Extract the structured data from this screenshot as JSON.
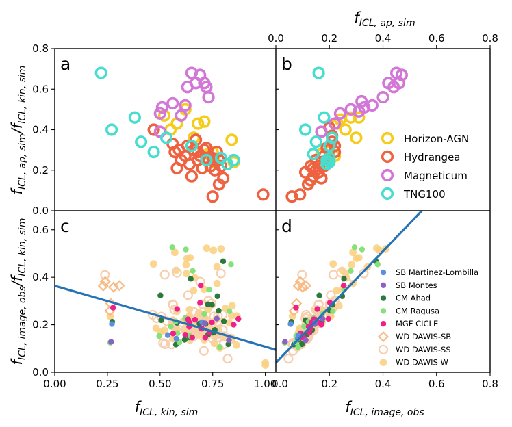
{
  "chart_data": {
    "type": "scatter",
    "title": "",
    "axis_labels": {
      "bottom_left": "f_ICL,kin,sim",
      "bottom_right": "f_ICL,image,obs",
      "top_right": "f_ICL,ap,sim",
      "left_top": "f_ICL,ap,sim / f_ICL,kin,sim",
      "left_bottom": "f_ICL,image,obs / f_ICL,kin,sim"
    },
    "axis_texts": {
      "left_top": {
        "base": "f",
        "sub": "ICL, ap, sim",
        "mid": "/f",
        "sub2": "ICL, kin, sim"
      },
      "left_bottom": {
        "base": "f",
        "sub": "ICL, image, obs",
        "mid": "/f",
        "sub2": "ICL, kin, sim"
      },
      "bottom_left": {
        "base": "f",
        "sub": "ICL, kin, sim"
      },
      "bottom_right": {
        "base": "f",
        "sub": "ICL, image, obs"
      },
      "top_right": {
        "base": "f",
        "sub": "ICL, ap, sim"
      }
    },
    "xlim_left": [
      0,
      1.05
    ],
    "xlim_right": [
      0,
      0.8
    ],
    "ylim_top": [
      0,
      0.8
    ],
    "ylim_bottom": [
      0,
      0.68
    ],
    "xticks_left": [
      "0.00",
      "0.25",
      "0.50",
      "0.75",
      "1.00"
    ],
    "xticks_right": [
      "0.0",
      "0.2",
      "0.4",
      "0.6",
      "0.8"
    ],
    "xticks_top": [
      "0.0",
      "0.2",
      "0.4",
      "0.6",
      "0.8"
    ],
    "yticks_top": [
      "0.0",
      "0.2",
      "0.4",
      "0.6",
      "0.8"
    ],
    "yticks_bottom": [
      "0.0",
      "0.2",
      "0.4",
      "0.6"
    ],
    "panel_labels": [
      "a",
      "b",
      "c",
      "d"
    ],
    "sim_legend": [
      {
        "name": "Horizon-AGN",
        "color": "#f5cc1b"
      },
      {
        "name": "Hydrangea",
        "color": "#ef6241"
      },
      {
        "name": "Magneticum",
        "color": "#d276d8"
      },
      {
        "name": "TNG100",
        "color": "#47ddcf"
      }
    ],
    "obs_legend": [
      {
        "name": "SB Martinez-Lombilla",
        "color": "#5b8fe0",
        "style": "dot"
      },
      {
        "name": "SB Montes",
        "color": "#8a62c6",
        "style": "dot"
      },
      {
        "name": "CM Ahad",
        "color": "#2a7a3c",
        "style": "dot"
      },
      {
        "name": "CM Ragusa",
        "color": "#86e07c",
        "style": "dot"
      },
      {
        "name": "MGF CICLE",
        "color": "#f01f8a",
        "style": "dot"
      },
      {
        "name": "WD DAWIS-SB",
        "color": "#f7bb85",
        "style": "diamond"
      },
      {
        "name": "WD DAWIS-SS",
        "color": "#f7cfae",
        "style": "ring"
      },
      {
        "name": "WD DAWIS-W",
        "color": "#f9cf7e",
        "style": "filled"
      }
    ],
    "fit_lines": {
      "c": {
        "x": [
          0,
          1.05
        ],
        "y": [
          0.364,
          0.095
        ]
      },
      "d": {
        "x": [
          0,
          0.545
        ],
        "y": [
          0.04,
          0.68
        ]
      }
    },
    "series_a": [
      {
        "name": "Horizon-AGN",
        "points": [
          [
            0.52,
            0.47
          ],
          [
            0.58,
            0.43
          ],
          [
            0.62,
            0.5
          ],
          [
            0.66,
            0.36
          ],
          [
            0.68,
            0.43
          ],
          [
            0.71,
            0.44
          ],
          [
            0.73,
            0.28
          ],
          [
            0.75,
            0.29
          ],
          [
            0.76,
            0.24
          ],
          [
            0.84,
            0.35
          ],
          [
            0.85,
            0.24
          ],
          [
            0.55,
            0.4
          ]
        ]
      },
      {
        "name": "Hydrangea",
        "points": [
          [
            0.47,
            0.4
          ],
          [
            0.56,
            0.33
          ],
          [
            0.57,
            0.29
          ],
          [
            0.59,
            0.3
          ],
          [
            0.62,
            0.27
          ],
          [
            0.63,
            0.32
          ],
          [
            0.64,
            0.23
          ],
          [
            0.65,
            0.17
          ],
          [
            0.66,
            0.3
          ],
          [
            0.67,
            0.35
          ],
          [
            0.68,
            0.29
          ],
          [
            0.68,
            0.25
          ],
          [
            0.69,
            0.27
          ],
          [
            0.7,
            0.21
          ],
          [
            0.71,
            0.3
          ],
          [
            0.72,
            0.31
          ],
          [
            0.72,
            0.26
          ],
          [
            0.73,
            0.25
          ],
          [
            0.74,
            0.22
          ],
          [
            0.75,
            0.26
          ],
          [
            0.77,
            0.29
          ],
          [
            0.78,
            0.25
          ],
          [
            0.78,
            0.13
          ],
          [
            0.79,
            0.22
          ],
          [
            0.8,
            0.16
          ],
          [
            0.75,
            0.07
          ],
          [
            0.6,
            0.25
          ],
          [
            0.99,
            0.08
          ],
          [
            0.58,
            0.21
          ],
          [
            0.76,
            0.2
          ]
        ]
      },
      {
        "name": "Magneticum",
        "points": [
          [
            0.5,
            0.48
          ],
          [
            0.51,
            0.51
          ],
          [
            0.56,
            0.53
          ],
          [
            0.62,
            0.52
          ],
          [
            0.63,
            0.61
          ],
          [
            0.65,
            0.68
          ],
          [
            0.67,
            0.63
          ],
          [
            0.69,
            0.67
          ],
          [
            0.71,
            0.63
          ],
          [
            0.72,
            0.61
          ],
          [
            0.73,
            0.56
          ],
          [
            0.5,
            0.39
          ],
          [
            0.6,
            0.47
          ]
        ]
      },
      {
        "name": "TNG100",
        "points": [
          [
            0.22,
            0.68
          ],
          [
            0.27,
            0.4
          ],
          [
            0.38,
            0.46
          ],
          [
            0.41,
            0.34
          ],
          [
            0.47,
            0.29
          ],
          [
            0.53,
            0.36
          ],
          [
            0.65,
            0.32
          ],
          [
            0.72,
            0.25
          ],
          [
            0.79,
            0.26
          ],
          [
            0.82,
            0.23
          ],
          [
            0.85,
            0.25
          ]
        ]
      }
    ],
    "series_b": [
      {
        "name": "Horizon-AGN",
        "points": [
          [
            0.23,
            0.43
          ],
          [
            0.24,
            0.45
          ],
          [
            0.26,
            0.4
          ],
          [
            0.28,
            0.46
          ],
          [
            0.3,
            0.36
          ],
          [
            0.2,
            0.29
          ],
          [
            0.22,
            0.27
          ],
          [
            0.19,
            0.24
          ],
          [
            0.2,
            0.25
          ],
          [
            0.17,
            0.28
          ],
          [
            0.18,
            0.23
          ],
          [
            0.31,
            0.46
          ]
        ]
      },
      {
        "name": "Hydrangea",
        "points": [
          [
            0.06,
            0.07
          ],
          [
            0.09,
            0.08
          ],
          [
            0.12,
            0.13
          ],
          [
            0.13,
            0.15
          ],
          [
            0.14,
            0.17
          ],
          [
            0.15,
            0.2
          ],
          [
            0.16,
            0.22
          ],
          [
            0.16,
            0.19
          ],
          [
            0.17,
            0.24
          ],
          [
            0.18,
            0.22
          ],
          [
            0.18,
            0.27
          ],
          [
            0.19,
            0.31
          ],
          [
            0.2,
            0.3
          ],
          [
            0.21,
            0.34
          ],
          [
            0.22,
            0.29
          ],
          [
            0.2,
            0.41
          ],
          [
            0.21,
            0.37
          ],
          [
            0.19,
            0.23
          ],
          [
            0.17,
            0.16
          ],
          [
            0.14,
            0.21
          ],
          [
            0.15,
            0.25
          ],
          [
            0.2,
            0.26
          ],
          [
            0.22,
            0.32
          ],
          [
            0.13,
            0.22
          ],
          [
            0.11,
            0.19
          ]
        ]
      },
      {
        "name": "Magneticum",
        "points": [
          [
            0.24,
            0.48
          ],
          [
            0.28,
            0.5
          ],
          [
            0.32,
            0.54
          ],
          [
            0.33,
            0.51
          ],
          [
            0.36,
            0.52
          ],
          [
            0.4,
            0.56
          ],
          [
            0.42,
            0.63
          ],
          [
            0.44,
            0.61
          ],
          [
            0.45,
            0.68
          ],
          [
            0.47,
            0.67
          ],
          [
            0.46,
            0.63
          ],
          [
            0.31,
            0.49
          ],
          [
            0.22,
            0.43
          ],
          [
            0.17,
            0.39
          ]
        ]
      },
      {
        "name": "TNG100",
        "points": [
          [
            0.16,
            0.68
          ],
          [
            0.11,
            0.4
          ],
          [
            0.18,
            0.46
          ],
          [
            0.15,
            0.34
          ],
          [
            0.14,
            0.28
          ],
          [
            0.21,
            0.36
          ],
          [
            0.2,
            0.32
          ],
          [
            0.19,
            0.25
          ],
          [
            0.2,
            0.26
          ],
          [
            0.19,
            0.23
          ],
          [
            0.2,
            0.24
          ]
        ]
      }
    ]
  }
}
